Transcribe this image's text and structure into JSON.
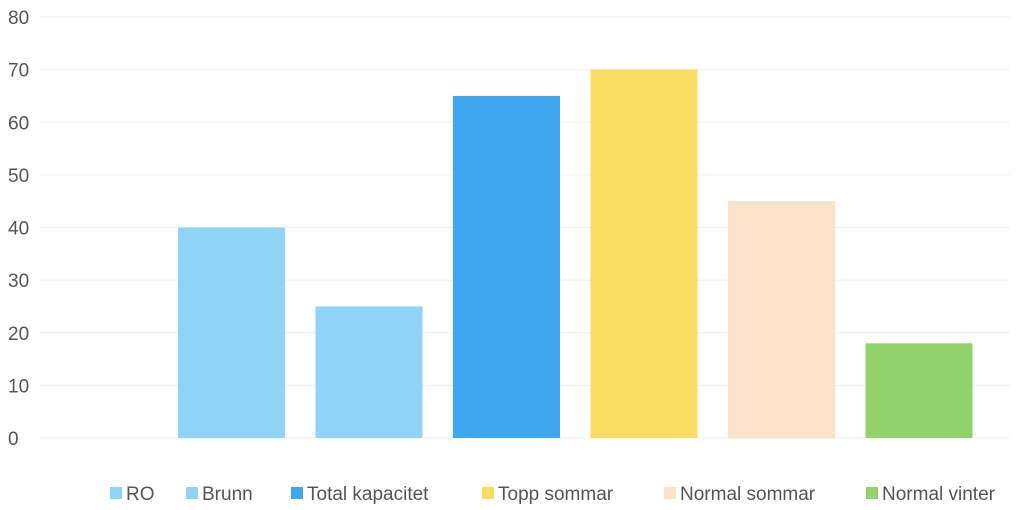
{
  "chart_data": {
    "type": "bar",
    "title": "",
    "xlabel": "",
    "ylabel": "",
    "ylim": [
      0,
      80
    ],
    "yticks": [
      0,
      10,
      20,
      30,
      40,
      50,
      60,
      70,
      80
    ],
    "grid": true,
    "legend_position": "bottom",
    "series": [
      {
        "name": "RO",
        "value": null,
        "color": "#8fd3f7"
      },
      {
        "name": "Brunn",
        "value": 40,
        "color": "#8fd3f7"
      },
      {
        "name": "Total kapacitet",
        "value": 25,
        "color": "#8fd3f7"
      },
      {
        "name": "Topp sommar",
        "value": 65,
        "color": "#3fa6f2"
      },
      {
        "name": "Normal sommar",
        "value": 70,
        "color": "#f9dc62"
      },
      {
        "name": "Normal vinter",
        "value": 45,
        "color": "#fbe3c9"
      }
    ],
    "extra_bar": {
      "value": 18,
      "color": "#92d26a"
    },
    "legend": [
      {
        "label": "RO",
        "color": "#8fd3f7"
      },
      {
        "label": "Brunn",
        "color": "#8fd3f7"
      },
      {
        "label": "Total kapacitet",
        "color": "#3fa6f2"
      },
      {
        "label": "Topp sommar",
        "color": "#f9dc62"
      },
      {
        "label": "Normal sommar",
        "color": "#fbe3c9"
      },
      {
        "label": "Normal vinter",
        "color": "#92d26a"
      }
    ]
  }
}
